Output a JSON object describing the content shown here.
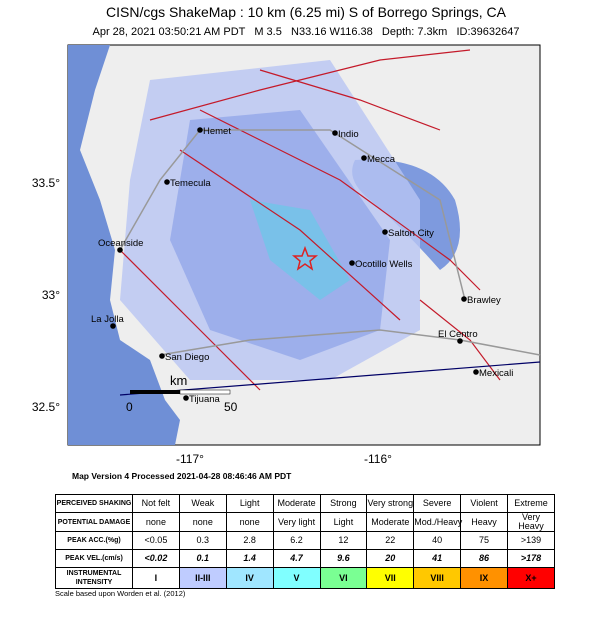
{
  "map": {
    "title": "CISN/cgs ShakeMap : 10 km (6.25 mi) S of Borrego Springs, CA",
    "subtitle": "Apr 28, 2021 03:50:21 AM PDT   M 3.5   N33.16 W116.38   Depth: 7.3km   ID:39632647",
    "lat_labels": [
      "33.5°",
      "33°",
      "32.5°"
    ],
    "lon_labels": [
      "-117°",
      "-116°"
    ],
    "cities": [
      "Hemet",
      "Indio",
      "Mecca",
      "Temecula",
      "Salton City",
      "Oceanside",
      "Ocotillo Wells",
      "Brawley",
      "La Jolla",
      "El Centro",
      "San Diego",
      "Mexicali",
      "Tijuana"
    ],
    "scale": {
      "unit": "km",
      "start": "0",
      "end": "50"
    },
    "version": "Map Version 4 Processed 2021-04-28 08:46:46 AM PDT"
  },
  "table": {
    "rows": [
      [
        "PERCEIVED SHAKING",
        "Not felt",
        "Weak",
        "Light",
        "Moderate",
        "Strong",
        "Very strong",
        "Severe",
        "Violent",
        "Extreme"
      ],
      [
        "POTENTIAL DAMAGE",
        "none",
        "none",
        "none",
        "Very light",
        "Light",
        "Moderate",
        "Mod./Heavy",
        "Heavy",
        "Very Heavy"
      ],
      [
        "PEAK ACC.(%g)",
        "<0.05",
        "0.3",
        "2.8",
        "6.2",
        "12",
        "22",
        "40",
        "75",
        ">139"
      ],
      [
        "PEAK VEL.(cm/s)",
        "<0.02",
        "0.1",
        "1.4",
        "4.7",
        "9.6",
        "20",
        "41",
        "86",
        ">178"
      ],
      [
        "INSTRUMENTAL INTENSITY",
        "I",
        "II-III",
        "IV",
        "V",
        "VI",
        "VII",
        "VIII",
        "IX",
        "X+"
      ]
    ],
    "note": "Scale based upon Worden et al. (2012)"
  }
}
